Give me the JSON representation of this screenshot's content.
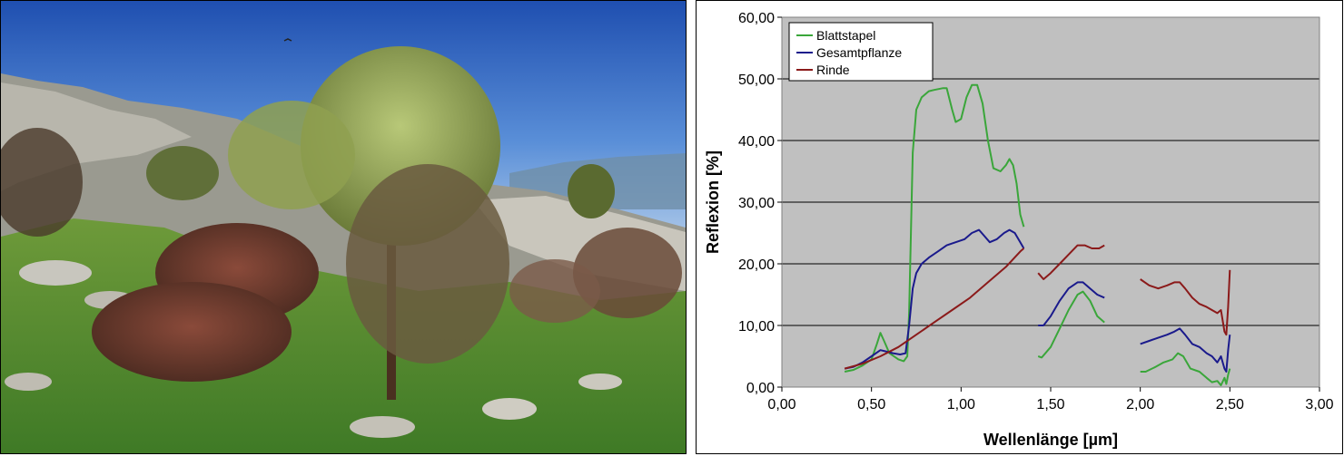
{
  "photo": {
    "description_name": "vegetation-photo"
  },
  "chart_data": {
    "type": "line",
    "title": "",
    "xlabel": "Wellenlänge [µm]",
    "ylabel": "Reflexion [%]",
    "xlim": [
      0.0,
      3.0
    ],
    "ylim": [
      0.0,
      60.0
    ],
    "x_ticks": [
      0.0,
      0.5,
      1.0,
      1.5,
      2.0,
      2.5,
      3.0
    ],
    "x_tick_labels": [
      "0,00",
      "0,50",
      "1,00",
      "1,50",
      "2,00",
      "2,50",
      "3,00"
    ],
    "y_ticks": [
      0,
      10,
      20,
      30,
      40,
      50,
      60
    ],
    "y_tick_labels": [
      "0,00",
      "10,00",
      "20,00",
      "30,00",
      "40,00",
      "50,00",
      "60,00"
    ],
    "grid": "horizontal",
    "background_color": "#c0c0c0",
    "legend_position": "top-left",
    "series": [
      {
        "name": "Blattstapel",
        "color": "#3aa63a",
        "segments": [
          [
            [
              0.35,
              2.5
            ],
            [
              0.4,
              2.8
            ],
            [
              0.45,
              3.5
            ],
            [
              0.5,
              4.5
            ],
            [
              0.53,
              7.0
            ],
            [
              0.55,
              8.8
            ],
            [
              0.57,
              7.5
            ],
            [
              0.6,
              5.5
            ],
            [
              0.65,
              4.5
            ],
            [
              0.68,
              4.2
            ],
            [
              0.7,
              5.0
            ],
            [
              0.71,
              12.0
            ],
            [
              0.72,
              25.0
            ],
            [
              0.73,
              38.0
            ],
            [
              0.75,
              45.0
            ],
            [
              0.78,
              47.0
            ],
            [
              0.82,
              48.0
            ],
            [
              0.85,
              48.2
            ],
            [
              0.9,
              48.5
            ],
            [
              0.92,
              48.5
            ],
            [
              0.95,
              45.0
            ],
            [
              0.97,
              43.0
            ],
            [
              1.0,
              43.5
            ],
            [
              1.03,
              47.0
            ],
            [
              1.06,
              49.0
            ],
            [
              1.09,
              49.0
            ],
            [
              1.12,
              46.0
            ],
            [
              1.15,
              40.0
            ],
            [
              1.18,
              35.5
            ],
            [
              1.22,
              35.0
            ],
            [
              1.25,
              36.0
            ],
            [
              1.27,
              37.0
            ],
            [
              1.29,
              36.0
            ],
            [
              1.31,
              33.0
            ],
            [
              1.33,
              28.0
            ],
            [
              1.35,
              26.0
            ]
          ],
          [
            [
              1.43,
              5.0
            ],
            [
              1.45,
              4.8
            ],
            [
              1.5,
              6.5
            ],
            [
              1.55,
              9.5
            ],
            [
              1.6,
              12.5
            ],
            [
              1.65,
              15.0
            ],
            [
              1.68,
              15.5
            ],
            [
              1.72,
              14.0
            ],
            [
              1.76,
              11.5
            ],
            [
              1.8,
              10.5
            ]
          ],
          [
            [
              2.0,
              2.5
            ],
            [
              2.03,
              2.5
            ],
            [
              2.08,
              3.2
            ],
            [
              2.13,
              4.0
            ],
            [
              2.18,
              4.5
            ],
            [
              2.21,
              5.5
            ],
            [
              2.24,
              5.0
            ],
            [
              2.28,
              3.0
            ],
            [
              2.33,
              2.5
            ],
            [
              2.37,
              1.5
            ],
            [
              2.4,
              0.8
            ],
            [
              2.43,
              1.0
            ],
            [
              2.45,
              0.3
            ],
            [
              2.47,
              1.5
            ],
            [
              2.48,
              0.5
            ],
            [
              2.49,
              2.0
            ],
            [
              2.5,
              3.0
            ]
          ]
        ]
      },
      {
        "name": "Gesamtpflanze",
        "color": "#1a1a8c",
        "segments": [
          [
            [
              0.35,
              3.0
            ],
            [
              0.4,
              3.3
            ],
            [
              0.45,
              4.0
            ],
            [
              0.5,
              5.0
            ],
            [
              0.55,
              6.0
            ],
            [
              0.58,
              5.8
            ],
            [
              0.62,
              5.5
            ],
            [
              0.66,
              5.3
            ],
            [
              0.69,
              5.5
            ],
            [
              0.71,
              10.0
            ],
            [
              0.73,
              16.0
            ],
            [
              0.75,
              18.5
            ],
            [
              0.78,
              20.0
            ],
            [
              0.82,
              21.0
            ],
            [
              0.87,
              22.0
            ],
            [
              0.92,
              23.0
            ],
            [
              0.97,
              23.5
            ],
            [
              1.02,
              24.0
            ],
            [
              1.06,
              25.0
            ],
            [
              1.1,
              25.5
            ],
            [
              1.13,
              24.5
            ],
            [
              1.16,
              23.5
            ],
            [
              1.2,
              24.0
            ],
            [
              1.24,
              25.0
            ],
            [
              1.27,
              25.5
            ],
            [
              1.3,
              25.0
            ],
            [
              1.33,
              23.5
            ],
            [
              1.35,
              22.5
            ]
          ],
          [
            [
              1.43,
              10.0
            ],
            [
              1.46,
              10.0
            ],
            [
              1.5,
              11.5
            ],
            [
              1.55,
              14.0
            ],
            [
              1.6,
              16.0
            ],
            [
              1.65,
              17.0
            ],
            [
              1.68,
              17.0
            ],
            [
              1.72,
              16.0
            ],
            [
              1.76,
              15.0
            ],
            [
              1.8,
              14.5
            ]
          ],
          [
            [
              2.0,
              7.0
            ],
            [
              2.05,
              7.5
            ],
            [
              2.1,
              8.0
            ],
            [
              2.15,
              8.5
            ],
            [
              2.19,
              9.0
            ],
            [
              2.22,
              9.5
            ],
            [
              2.25,
              8.5
            ],
            [
              2.29,
              7.0
            ],
            [
              2.33,
              6.5
            ],
            [
              2.37,
              5.5
            ],
            [
              2.4,
              5.0
            ],
            [
              2.43,
              4.0
            ],
            [
              2.45,
              5.0
            ],
            [
              2.47,
              3.0
            ],
            [
              2.48,
              2.5
            ],
            [
              2.49,
              6.0
            ],
            [
              2.5,
              8.5
            ]
          ]
        ]
      },
      {
        "name": "Rinde",
        "color": "#8b1a1a",
        "segments": [
          [
            [
              0.35,
              3.0
            ],
            [
              0.45,
              3.8
            ],
            [
              0.55,
              5.0
            ],
            [
              0.65,
              6.5
            ],
            [
              0.75,
              8.5
            ],
            [
              0.85,
              10.5
            ],
            [
              0.95,
              12.5
            ],
            [
              1.05,
              14.5
            ],
            [
              1.15,
              17.0
            ],
            [
              1.25,
              19.5
            ],
            [
              1.33,
              22.0
            ],
            [
              1.35,
              22.5
            ]
          ],
          [
            [
              1.43,
              18.5
            ],
            [
              1.46,
              17.5
            ],
            [
              1.5,
              18.5
            ],
            [
              1.55,
              20.0
            ],
            [
              1.6,
              21.5
            ],
            [
              1.65,
              23.0
            ],
            [
              1.69,
              23.0
            ],
            [
              1.73,
              22.5
            ],
            [
              1.77,
              22.5
            ],
            [
              1.8,
              23.0
            ]
          ],
          [
            [
              2.0,
              17.5
            ],
            [
              2.05,
              16.5
            ],
            [
              2.1,
              16.0
            ],
            [
              2.15,
              16.5
            ],
            [
              2.19,
              17.0
            ],
            [
              2.22,
              17.0
            ],
            [
              2.25,
              16.0
            ],
            [
              2.29,
              14.5
            ],
            [
              2.33,
              13.5
            ],
            [
              2.37,
              13.0
            ],
            [
              2.4,
              12.5
            ],
            [
              2.43,
              12.0
            ],
            [
              2.45,
              12.5
            ],
            [
              2.47,
              9.0
            ],
            [
              2.48,
              8.5
            ],
            [
              2.49,
              13.0
            ],
            [
              2.5,
              19.0
            ]
          ]
        ]
      }
    ]
  }
}
